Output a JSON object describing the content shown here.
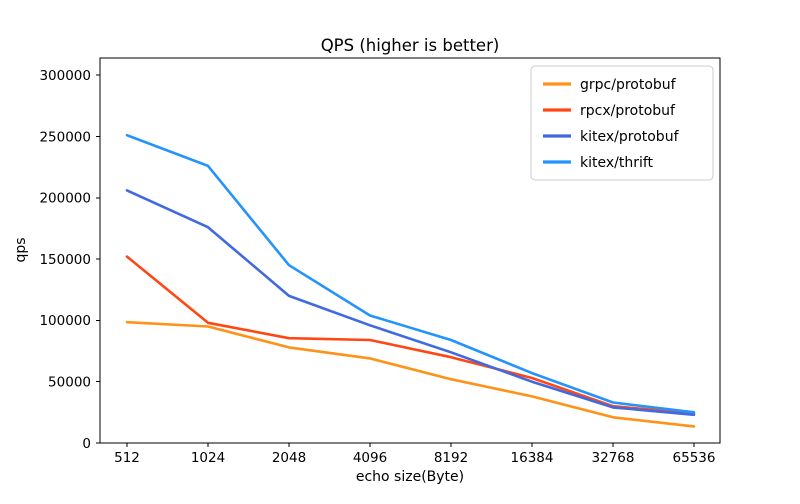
{
  "chart_data": {
    "type": "line",
    "title": "QPS (higher is better)",
    "xlabel": "echo size(Byte)",
    "ylabel": "qps",
    "x_scale": "log2-categorical",
    "categories": [
      "512",
      "1024",
      "2048",
      "4096",
      "8192",
      "16384",
      "32768",
      "65536"
    ],
    "y_ticks": [
      0,
      50000,
      100000,
      150000,
      200000,
      250000,
      300000
    ],
    "ylim": [
      0,
      314000
    ],
    "grid": false,
    "legend_position": "upper right",
    "series": [
      {
        "name": "grpc/protobuf",
        "color": "#FF9218",
        "values": [
          98500,
          95000,
          78000,
          69000,
          52000,
          38000,
          21000,
          13500
        ]
      },
      {
        "name": "rpcx/protobuf",
        "color": "#FF4715",
        "values": [
          152000,
          98000,
          85500,
          84000,
          70000,
          53000,
          30000,
          24000
        ]
      },
      {
        "name": "kitex/protobuf",
        "color": "#4169E1",
        "values": [
          206000,
          176000,
          120000,
          96000,
          74000,
          50000,
          29000,
          23000
        ]
      },
      {
        "name": "kitex/thrift",
        "color": "#2493FB",
        "values": [
          251000,
          226000,
          145000,
          104000,
          84000,
          57000,
          33000,
          25000
        ]
      }
    ]
  }
}
